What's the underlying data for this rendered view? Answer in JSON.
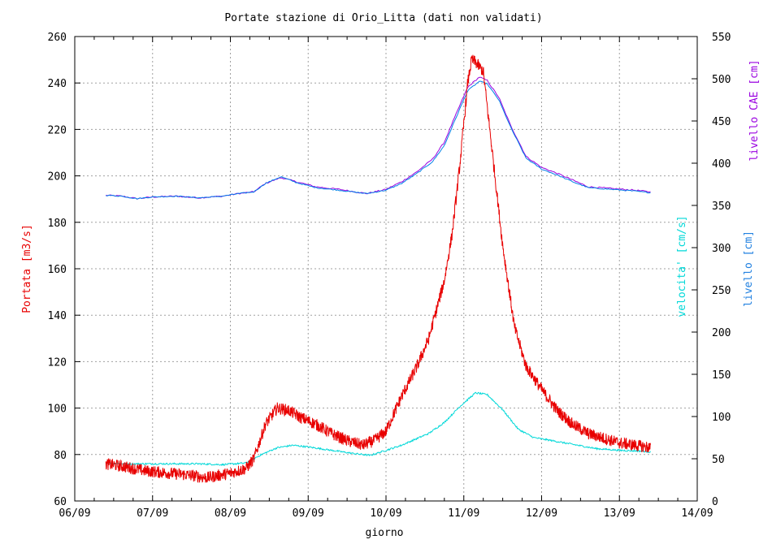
{
  "chart_data": {
    "type": "line",
    "title": "Portate stazione di Orio_Litta (dati non validati)",
    "xlabel": "giorno",
    "ylabel_left": "Portata [m3/s]",
    "ylabels_right": [
      "livello CAE [cm]",
      "livello [cm]",
      "velocita' [cm/s]"
    ],
    "x_ticks": [
      "06/09",
      "07/09",
      "08/09",
      "09/09",
      "10/09",
      "11/09",
      "12/09",
      "13/09",
      "14/09"
    ],
    "xlim_days": [
      6,
      14
    ],
    "ylim_left": [
      60,
      260
    ],
    "ylim_right": [
      0,
      550
    ],
    "yticks_left": [
      60,
      80,
      100,
      120,
      140,
      160,
      180,
      200,
      220,
      240,
      260
    ],
    "yticks_right": [
      0,
      50,
      100,
      150,
      200,
      250,
      300,
      350,
      400,
      450,
      500,
      550
    ],
    "grid": true,
    "colors": {
      "portata": "#e80000",
      "livello_cae": "#9a00e0",
      "livello": "#0080e8",
      "velocita": "#00d8d8",
      "axis_left_label": "#e80000",
      "axis_cae_label": "#9a00e0",
      "axis_livello_label": "#2080e0",
      "axis_velocita_label": "#00d8d8",
      "grid": "#a0a0a0"
    },
    "series": [
      {
        "key": "portata",
        "axis": "left",
        "x_day": [
          6.4,
          6.6,
          6.9,
          7.2,
          7.5,
          7.7,
          8.0,
          8.2,
          8.3,
          8.45,
          8.6,
          8.75,
          8.9,
          9.1,
          9.3,
          9.5,
          9.7,
          9.85,
          10.0,
          10.2,
          10.4,
          10.55,
          10.75,
          10.85,
          10.95,
          11.05,
          11.1,
          11.15,
          11.25,
          11.35,
          11.5,
          11.65,
          11.8,
          12.0,
          12.2,
          12.4,
          12.6,
          12.8,
          13.0,
          13.2,
          13.4
        ],
        "values": [
          76,
          75,
          73,
          72,
          71,
          70,
          72,
          74,
          78,
          93,
          100,
          99,
          96,
          93,
          89,
          86,
          84,
          86,
          90,
          105,
          118,
          130,
          155,
          175,
          205,
          240,
          250,
          249,
          245,
          215,
          170,
          135,
          118,
          108,
          99,
          93,
          89,
          87,
          85,
          84,
          83
        ]
      },
      {
        "key": "livello_cae",
        "axis": "right",
        "x_day": [
          6.4,
          6.6,
          6.8,
          7.0,
          7.3,
          7.6,
          7.9,
          8.1,
          8.3,
          8.45,
          8.65,
          8.85,
          9.1,
          9.4,
          9.75,
          10.0,
          10.2,
          10.4,
          10.6,
          10.75,
          10.9,
          11.05,
          11.2,
          11.3,
          11.45,
          11.6,
          11.8,
          12.0,
          12.2,
          12.4,
          12.6,
          12.9,
          13.2,
          13.4
        ],
        "values": [
          362,
          361,
          358,
          360,
          361,
          359,
          361,
          364,
          366,
          376,
          383,
          378,
          372,
          369,
          364,
          369,
          378,
          390,
          405,
          425,
          458,
          490,
          502,
          498,
          478,
          445,
          408,
          395,
          388,
          380,
          372,
          370,
          368,
          366
        ]
      },
      {
        "key": "livello",
        "axis": "right",
        "x_day": [
          6.4,
          6.6,
          6.8,
          7.0,
          7.3,
          7.6,
          7.9,
          8.1,
          8.3,
          8.45,
          8.65,
          8.85,
          9.1,
          9.4,
          9.75,
          10.0,
          10.2,
          10.4,
          10.6,
          10.75,
          10.9,
          11.05,
          11.2,
          11.3,
          11.45,
          11.6,
          11.8,
          12.0,
          12.2,
          12.4,
          12.6,
          12.9,
          13.2,
          13.4
        ],
        "values": [
          362,
          361,
          358,
          360,
          361,
          359,
          361,
          364,
          366,
          376,
          384,
          377,
          371,
          368,
          364,
          368,
          376,
          388,
          402,
          421,
          454,
          486,
          497,
          494,
          475,
          443,
          406,
          393,
          386,
          378,
          371,
          369,
          367,
          365
        ]
      },
      {
        "key": "velocita",
        "axis": "right",
        "x_day": [
          6.4,
          6.7,
          7.0,
          7.3,
          7.6,
          7.9,
          8.2,
          8.4,
          8.6,
          8.8,
          9.0,
          9.3,
          9.6,
          9.8,
          10.0,
          10.2,
          10.4,
          10.55,
          10.75,
          10.95,
          11.15,
          11.3,
          11.5,
          11.7,
          11.9,
          12.1,
          12.4,
          12.7,
          13.0,
          13.3,
          13.4
        ],
        "values": [
          45,
          44,
          44,
          44,
          44,
          43,
          45,
          55,
          63,
          66,
          64,
          60,
          56,
          54,
          60,
          66,
          74,
          80,
          93,
          112,
          128,
          126,
          108,
          85,
          75,
          72,
          67,
          62,
          60,
          59,
          58
        ]
      }
    ]
  }
}
